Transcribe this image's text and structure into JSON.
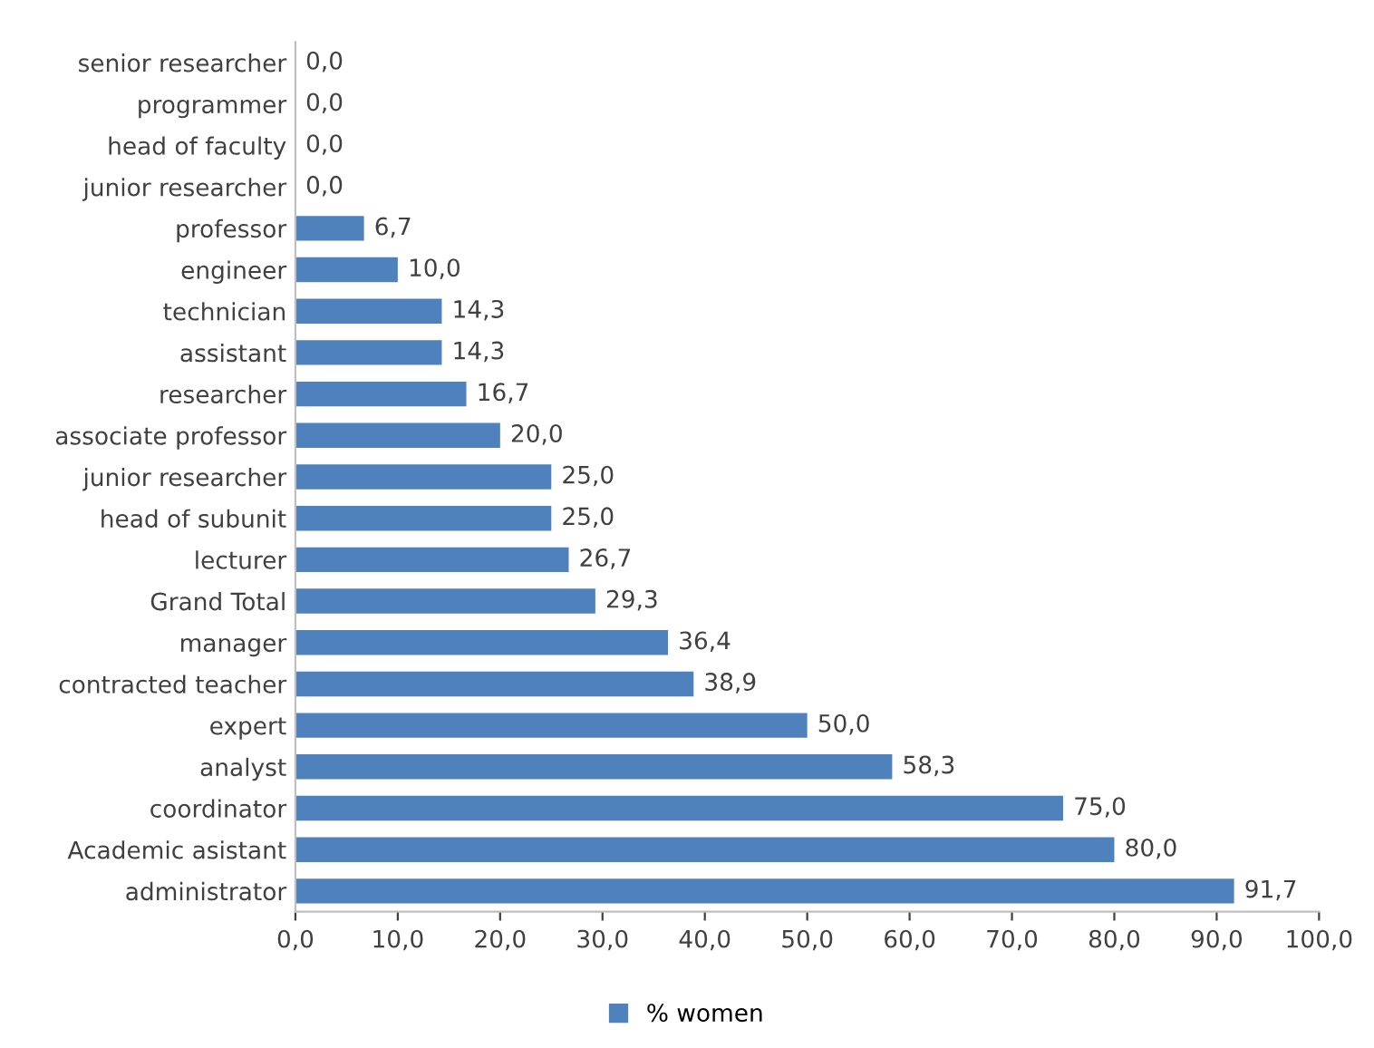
{
  "chart_data": {
    "type": "bar",
    "orientation": "horizontal",
    "categories": [
      "senior researcher",
      "programmer",
      "head of faculty",
      "junior researcher",
      "professor",
      "engineer",
      "technician",
      "assistant",
      "researcher",
      "associate professor",
      "junior researcher",
      "head of subunit",
      "lecturer",
      "Grand Total",
      "manager",
      "contracted teacher",
      "expert",
      "analyst",
      "coordinator",
      "Academic asistant",
      "administrator"
    ],
    "series": [
      {
        "name": "% women",
        "color": "#4f81bd",
        "values": [
          0.0,
          0.0,
          0.0,
          0.0,
          6.7,
          10.0,
          14.3,
          14.3,
          16.7,
          20.0,
          25.0,
          25.0,
          26.7,
          29.3,
          36.4,
          38.9,
          50.0,
          58.3,
          75.0,
          80.0,
          91.7
        ],
        "value_labels": [
          "0,0",
          "0,0",
          "0,0",
          "0,0",
          "6,7",
          "10,0",
          "14,3",
          "14,3",
          "16,7",
          "20,0",
          "25,0",
          "25,0",
          "26,7",
          "29,3",
          "36,4",
          "38,9",
          "50,0",
          "58,3",
          "75,0",
          "80,0",
          "91,7"
        ]
      }
    ],
    "xlim": [
      0,
      100
    ],
    "xticks": [
      {
        "value": 0,
        "label": "0,0"
      },
      {
        "value": 10,
        "label": "10,0"
      },
      {
        "value": 20,
        "label": "20,0"
      },
      {
        "value": 30,
        "label": "30,0"
      },
      {
        "value": 40,
        "label": "40,0"
      },
      {
        "value": 50,
        "label": "50,0"
      },
      {
        "value": 60,
        "label": "60,0"
      },
      {
        "value": 70,
        "label": "70,0"
      },
      {
        "value": 80,
        "label": "80,0"
      },
      {
        "value": 90,
        "label": "90,0"
      },
      {
        "value": 100,
        "label": "100,0"
      }
    ],
    "legend": "bottom",
    "grid": false
  }
}
